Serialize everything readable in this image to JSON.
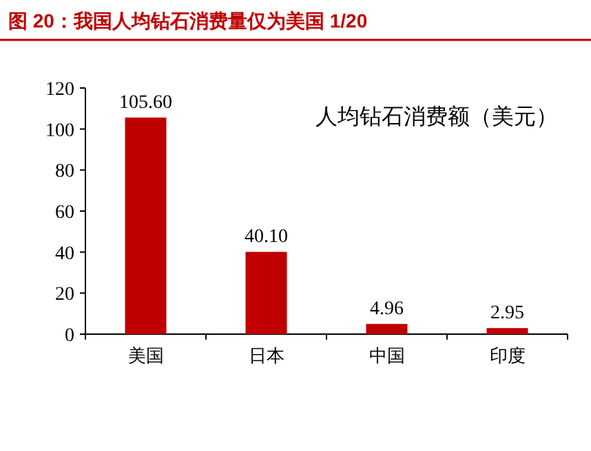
{
  "chart_data": {
    "type": "bar",
    "title": "图 20：我国人均钻石消费量仅为美国 1/20",
    "categories": [
      "美国",
      "日本",
      "中国",
      "印度"
    ],
    "values": [
      105.6,
      40.1,
      4.96,
      2.95
    ],
    "value_labels": [
      "105.60",
      "40.10",
      "4.96",
      "2.95"
    ],
    "color": "#c00000",
    "ylim": [
      0,
      120
    ],
    "yticks": [
      0,
      20,
      40,
      60,
      80,
      100,
      120
    ],
    "annotations": [
      "人均钻石消费额（美元）"
    ]
  }
}
